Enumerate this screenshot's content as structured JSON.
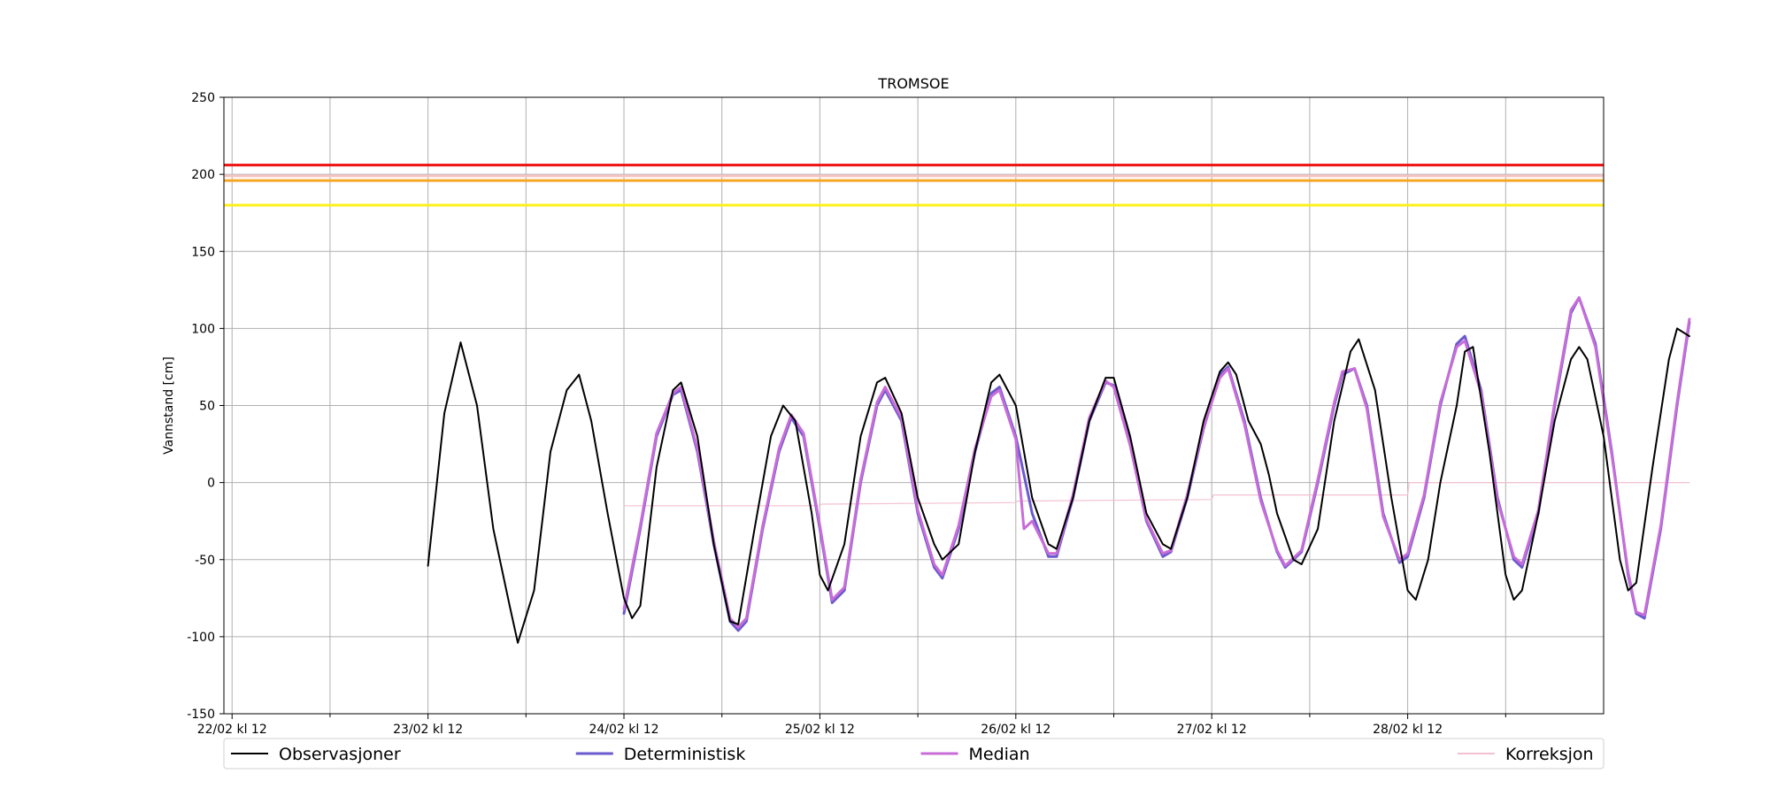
{
  "chart_data": {
    "type": "line",
    "title": "TROMSOE",
    "ylabel": "Vannstand [cm]",
    "xlabel": "",
    "ylim": [
      -150,
      250
    ],
    "yticks": [
      -150,
      -100,
      -50,
      0,
      50,
      100,
      150,
      200,
      250
    ],
    "x_unit": "hours since 22/02 kl 12",
    "xlim": [
      -1,
      168
    ],
    "xticks": [
      {
        "x": 0,
        "label": "22/02 kl 12"
      },
      {
        "x": 24,
        "label": "23/02 kl 12"
      },
      {
        "x": 48,
        "label": "24/02 kl 12"
      },
      {
        "x": 72,
        "label": "25/02 kl 12"
      },
      {
        "x": 96,
        "label": "26/02 kl 12"
      },
      {
        "x": 120,
        "label": "27/02 kl 12"
      },
      {
        "x": 144,
        "label": "28/02 kl 12"
      }
    ],
    "minor_xticks": [
      12,
      36,
      60,
      84,
      108,
      132,
      156
    ],
    "grid": true,
    "legend": "bottom",
    "thresholds": [
      {
        "y": 206,
        "color": "#ee1111"
      },
      {
        "y": 199,
        "color": "#f6c4c4"
      },
      {
        "y": 196,
        "color": "#f5a623"
      },
      {
        "y": 180,
        "color": "#ffef1a"
      }
    ],
    "series": [
      {
        "name": "Observasjoner",
        "color": "#000000",
        "width": 2,
        "points": [
          [
            24,
            -54
          ],
          [
            26,
            45
          ],
          [
            28,
            91
          ],
          [
            30,
            50
          ],
          [
            32,
            -30
          ],
          [
            34,
            -80
          ],
          [
            35,
            -104
          ],
          [
            37,
            -70
          ],
          [
            39,
            20
          ],
          [
            41,
            60
          ],
          [
            42.5,
            70
          ],
          [
            44,
            40
          ],
          [
            46,
            -20
          ],
          [
            48,
            -75
          ],
          [
            49,
            -88
          ],
          [
            50,
            -80
          ],
          [
            52,
            10
          ],
          [
            54,
            60
          ],
          [
            55,
            65
          ],
          [
            57,
            30
          ],
          [
            59,
            -40
          ],
          [
            61,
            -90
          ],
          [
            62,
            -92
          ],
          [
            64,
            -30
          ],
          [
            66,
            30
          ],
          [
            67.5,
            50
          ],
          [
            69,
            40
          ],
          [
            71,
            -20
          ],
          [
            72,
            -60
          ],
          [
            73,
            -70
          ],
          [
            75,
            -40
          ],
          [
            77,
            30
          ],
          [
            79,
            65
          ],
          [
            80,
            68
          ],
          [
            82,
            45
          ],
          [
            84,
            -10
          ],
          [
            86,
            -40
          ],
          [
            87,
            -50
          ],
          [
            89,
            -40
          ],
          [
            91,
            20
          ],
          [
            93,
            65
          ],
          [
            94,
            70
          ],
          [
            96,
            50
          ],
          [
            98,
            -10
          ],
          [
            100,
            -40
          ],
          [
            101,
            -43
          ],
          [
            103,
            -10
          ],
          [
            105,
            40
          ],
          [
            107,
            68
          ],
          [
            108,
            68
          ],
          [
            110,
            30
          ],
          [
            112,
            -20
          ],
          [
            114,
            -40
          ],
          [
            115,
            -43
          ],
          [
            117,
            -10
          ],
          [
            119,
            40
          ],
          [
            121,
            72
          ],
          [
            122,
            78
          ],
          [
            123,
            70
          ],
          [
            124.5,
            40
          ],
          [
            126,
            25
          ],
          [
            127,
            5
          ],
          [
            128,
            -20
          ],
          [
            130,
            -50
          ],
          [
            131,
            -53
          ],
          [
            133,
            -30
          ],
          [
            135,
            40
          ],
          [
            137,
            85
          ],
          [
            138,
            93
          ],
          [
            140,
            60
          ],
          [
            142,
            -10
          ],
          [
            144,
            -70
          ],
          [
            145,
            -76
          ],
          [
            146.5,
            -50
          ],
          [
            148,
            0
          ],
          [
            150,
            50
          ],
          [
            151,
            85
          ],
          [
            152,
            88
          ],
          [
            154,
            20
          ],
          [
            156,
            -60
          ],
          [
            157,
            -76
          ],
          [
            158,
            -70
          ],
          [
            160,
            -20
          ],
          [
            162,
            40
          ],
          [
            164,
            80
          ],
          [
            165,
            88
          ],
          [
            166,
            80
          ],
          [
            168,
            30
          ],
          [
            170,
            -50
          ],
          [
            171,
            -70
          ],
          [
            172,
            -65
          ],
          [
            174,
            10
          ],
          [
            176,
            80
          ],
          [
            177,
            100
          ],
          [
            178.5,
            95
          ]
        ]
      },
      {
        "name": "Deterministisk",
        "color": "#6a5acd",
        "width": 3,
        "points": [
          [
            48,
            -85
          ],
          [
            50,
            -30
          ],
          [
            52,
            30
          ],
          [
            54,
            57
          ],
          [
            55,
            60
          ],
          [
            57,
            20
          ],
          [
            59,
            -40
          ],
          [
            61,
            -90
          ],
          [
            62,
            -96
          ],
          [
            63,
            -90
          ],
          [
            65,
            -30
          ],
          [
            67,
            20
          ],
          [
            68.5,
            42
          ],
          [
            70,
            30
          ],
          [
            72,
            -30
          ],
          [
            73.5,
            -78
          ],
          [
            75,
            -70
          ],
          [
            77,
            0
          ],
          [
            79,
            50
          ],
          [
            80,
            60
          ],
          [
            82,
            40
          ],
          [
            84,
            -20
          ],
          [
            86,
            -55
          ],
          [
            87,
            -62
          ],
          [
            89,
            -30
          ],
          [
            91,
            20
          ],
          [
            93,
            58
          ],
          [
            94,
            62
          ],
          [
            96,
            30
          ],
          [
            98,
            -20
          ],
          [
            100,
            -48
          ],
          [
            101,
            -48
          ],
          [
            103,
            -10
          ],
          [
            105,
            40
          ],
          [
            107,
            65
          ],
          [
            108,
            63
          ],
          [
            110,
            25
          ],
          [
            112,
            -25
          ],
          [
            114,
            -48
          ],
          [
            115,
            -45
          ],
          [
            117,
            -10
          ],
          [
            119,
            35
          ],
          [
            121,
            70
          ],
          [
            122,
            75
          ],
          [
            124,
            40
          ],
          [
            126,
            -10
          ],
          [
            128,
            -45
          ],
          [
            129,
            -55
          ],
          [
            131,
            -45
          ],
          [
            133,
            0
          ],
          [
            135,
            50
          ],
          [
            136,
            70
          ],
          [
            137.5,
            74
          ],
          [
            139,
            50
          ],
          [
            141,
            -20
          ],
          [
            143,
            -52
          ],
          [
            144,
            -48
          ],
          [
            146,
            -10
          ],
          [
            148,
            50
          ],
          [
            150,
            90
          ],
          [
            151,
            95
          ],
          [
            153,
            60
          ],
          [
            155,
            -10
          ],
          [
            157,
            -50
          ],
          [
            158,
            -55
          ],
          [
            160,
            -20
          ],
          [
            162,
            50
          ],
          [
            164,
            110
          ],
          [
            165,
            120
          ],
          [
            167,
            90
          ],
          [
            169,
            20
          ],
          [
            171,
            -60
          ],
          [
            172,
            -85
          ],
          [
            173,
            -88
          ],
          [
            175,
            -30
          ],
          [
            177,
            50
          ],
          [
            178.5,
            104
          ]
        ]
      },
      {
        "name": "Median",
        "color": "#c86cd8",
        "width": 3,
        "points": [
          [
            48,
            -82
          ],
          [
            50,
            -28
          ],
          [
            52,
            32
          ],
          [
            54,
            58
          ],
          [
            55,
            62
          ],
          [
            57,
            22
          ],
          [
            59,
            -38
          ],
          [
            61,
            -88
          ],
          [
            62,
            -94
          ],
          [
            63,
            -88
          ],
          [
            65,
            -28
          ],
          [
            67,
            22
          ],
          [
            68.5,
            44
          ],
          [
            70,
            32
          ],
          [
            72,
            -28
          ],
          [
            73.5,
            -76
          ],
          [
            75,
            -68
          ],
          [
            77,
            2
          ],
          [
            79,
            52
          ],
          [
            80,
            62
          ],
          [
            82,
            42
          ],
          [
            84,
            -18
          ],
          [
            86,
            -53
          ],
          [
            87,
            -60
          ],
          [
            89,
            -28
          ],
          [
            91,
            22
          ],
          [
            93,
            56
          ],
          [
            94,
            60
          ],
          [
            96,
            28
          ],
          [
            97,
            -30
          ],
          [
            98,
            -25
          ],
          [
            100,
            -46
          ],
          [
            101,
            -46
          ],
          [
            103,
            -8
          ],
          [
            105,
            42
          ],
          [
            107,
            66
          ],
          [
            108,
            62
          ],
          [
            110,
            24
          ],
          [
            112,
            -24
          ],
          [
            114,
            -46
          ],
          [
            115,
            -44
          ],
          [
            117,
            -8
          ],
          [
            119,
            36
          ],
          [
            121,
            68
          ],
          [
            122,
            74
          ],
          [
            124,
            38
          ],
          [
            126,
            -12
          ],
          [
            128,
            -44
          ],
          [
            129,
            -54
          ],
          [
            131,
            -44
          ],
          [
            133,
            2
          ],
          [
            135,
            52
          ],
          [
            136,
            72
          ],
          [
            137.5,
            74
          ],
          [
            139,
            48
          ],
          [
            141,
            -22
          ],
          [
            143,
            -50
          ],
          [
            144,
            -46
          ],
          [
            146,
            -8
          ],
          [
            148,
            52
          ],
          [
            150,
            88
          ],
          [
            151,
            92
          ],
          [
            153,
            58
          ],
          [
            155,
            -12
          ],
          [
            157,
            -48
          ],
          [
            158,
            -53
          ],
          [
            160,
            -18
          ],
          [
            162,
            52
          ],
          [
            164,
            112
          ],
          [
            165,
            120
          ],
          [
            167,
            88
          ],
          [
            169,
            18
          ],
          [
            171,
            -58
          ],
          [
            172,
            -84
          ],
          [
            173,
            -86
          ],
          [
            175,
            -28
          ],
          [
            177,
            52
          ],
          [
            178.5,
            106
          ]
        ]
      },
      {
        "name": "Korreksjon",
        "color": "#f3c0cf",
        "width": 1.2,
        "points": [
          [
            48,
            -15
          ],
          [
            72,
            -15
          ],
          [
            72.2,
            -14
          ],
          [
            96,
            -13
          ],
          [
            96.2,
            -12
          ],
          [
            120,
            -11
          ],
          [
            120.2,
            -8
          ],
          [
            144,
            -8
          ],
          [
            144.2,
            0
          ],
          [
            178.5,
            0
          ]
        ]
      }
    ]
  }
}
